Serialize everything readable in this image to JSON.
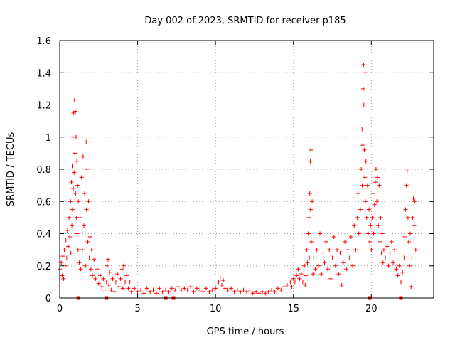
{
  "chart_data": {
    "type": "scatter",
    "title": "Day 002 of 2023, SRMTID for receiver p185",
    "xlabel": "GPS time / hours",
    "ylabel": "SRMTID / TECUs",
    "xlim": [
      0,
      24
    ],
    "ylim": [
      0,
      1.6
    ],
    "xticks": [
      "0",
      "5",
      "10",
      "15",
      "20"
    ],
    "yticks": [
      "0",
      "0.2",
      "0.4",
      "0.6",
      "0.8",
      "1",
      "1.2",
      "1.4",
      "1.6"
    ],
    "xtick_values": [
      0,
      5,
      10,
      15,
      20
    ],
    "ytick_values": [
      0,
      0.2,
      0.4,
      0.6,
      0.8,
      1.0,
      1.2,
      1.4,
      1.6
    ],
    "grid": true,
    "marker": "plus",
    "marker_color": "#ff0000",
    "axis_markers_x": [
      1.2,
      3.0,
      6.8,
      7.3,
      19.9,
      21.9
    ],
    "series": [
      {
        "name": "SRMTID",
        "points": [
          [
            0.0,
            0.18
          ],
          [
            0.1,
            0.22
          ],
          [
            0.15,
            0.14
          ],
          [
            0.2,
            0.26
          ],
          [
            0.25,
            0.12
          ],
          [
            0.3,
            0.3
          ],
          [
            0.35,
            0.2
          ],
          [
            0.4,
            0.36
          ],
          [
            0.45,
            0.25
          ],
          [
            0.5,
            0.42
          ],
          [
            0.55,
            0.32
          ],
          [
            0.6,
            0.5
          ],
          [
            0.65,
            0.38
          ],
          [
            0.7,
            0.6
          ],
          [
            0.72,
            0.28
          ],
          [
            0.75,
            0.72
          ],
          [
            0.78,
            0.45
          ],
          [
            0.8,
            0.82
          ],
          [
            0.82,
            0.55
          ],
          [
            0.85,
            1.0
          ],
          [
            0.87,
            0.68
          ],
          [
            0.9,
            1.15
          ],
          [
            0.92,
            0.78
          ],
          [
            0.95,
            1.23
          ],
          [
            0.97,
            0.9
          ],
          [
            1.0,
            1.16
          ],
          [
            1.02,
            0.65
          ],
          [
            1.05,
            1.0
          ],
          [
            1.08,
            0.5
          ],
          [
            1.1,
            0.85
          ],
          [
            1.12,
            0.4
          ],
          [
            1.15,
            0.7
          ],
          [
            1.18,
            0.3
          ],
          [
            1.2,
            0.6
          ],
          [
            1.25,
            0.22
          ],
          [
            1.3,
            0.5
          ],
          [
            1.35,
            0.18
          ],
          [
            1.4,
            0.75
          ],
          [
            1.45,
            0.3
          ],
          [
            1.5,
            0.88
          ],
          [
            1.55,
            0.45
          ],
          [
            1.6,
            0.65
          ],
          [
            1.65,
            0.2
          ],
          [
            1.7,
            0.97
          ],
          [
            1.72,
            0.55
          ],
          [
            1.75,
            0.8
          ],
          [
            1.8,
            0.35
          ],
          [
            1.85,
            0.6
          ],
          [
            1.9,
            0.25
          ],
          [
            1.95,
            0.38
          ],
          [
            2.0,
            0.18
          ],
          [
            2.05,
            0.3
          ],
          [
            2.1,
            0.14
          ],
          [
            2.2,
            0.24
          ],
          [
            2.3,
            0.12
          ],
          [
            2.4,
            0.18
          ],
          [
            2.5,
            0.09
          ],
          [
            2.6,
            0.14
          ],
          [
            2.7,
            0.07
          ],
          [
            2.8,
            0.12
          ],
          [
            2.9,
            0.05
          ],
          [
            3.0,
            0.1
          ],
          [
            3.05,
            0.2
          ],
          [
            3.1,
            0.24
          ],
          [
            3.15,
            0.08
          ],
          [
            3.2,
            0.16
          ],
          [
            3.3,
            0.05
          ],
          [
            3.4,
            0.12
          ],
          [
            3.5,
            0.04
          ],
          [
            3.6,
            0.1
          ],
          [
            3.7,
            0.15
          ],
          [
            3.8,
            0.07
          ],
          [
            3.9,
            0.12
          ],
          [
            4.0,
            0.18
          ],
          [
            4.05,
            0.06
          ],
          [
            4.1,
            0.2
          ],
          [
            4.2,
            0.1
          ],
          [
            4.3,
            0.14
          ],
          [
            4.4,
            0.06
          ],
          [
            4.5,
            0.1
          ],
          [
            4.6,
            0.04
          ],
          [
            4.8,
            0.06
          ],
          [
            5.0,
            0.04
          ],
          [
            5.2,
            0.05
          ],
          [
            5.4,
            0.03
          ],
          [
            5.6,
            0.06
          ],
          [
            5.8,
            0.04
          ],
          [
            6.0,
            0.05
          ],
          [
            6.2,
            0.03
          ],
          [
            6.4,
            0.06
          ],
          [
            6.6,
            0.04
          ],
          [
            6.8,
            0.05
          ],
          [
            7.0,
            0.04
          ],
          [
            7.2,
            0.06
          ],
          [
            7.4,
            0.05
          ],
          [
            7.6,
            0.07
          ],
          [
            7.8,
            0.05
          ],
          [
            8.0,
            0.06
          ],
          [
            8.2,
            0.05
          ],
          [
            8.4,
            0.07
          ],
          [
            8.6,
            0.04
          ],
          [
            8.8,
            0.06
          ],
          [
            9.0,
            0.05
          ],
          [
            9.2,
            0.04
          ],
          [
            9.4,
            0.06
          ],
          [
            9.6,
            0.04
          ],
          [
            9.8,
            0.05
          ],
          [
            10.0,
            0.06
          ],
          [
            10.2,
            0.1
          ],
          [
            10.3,
            0.13
          ],
          [
            10.4,
            0.08
          ],
          [
            10.5,
            0.11
          ],
          [
            10.6,
            0.06
          ],
          [
            10.8,
            0.05
          ],
          [
            11.0,
            0.06
          ],
          [
            11.2,
            0.04
          ],
          [
            11.4,
            0.05
          ],
          [
            11.6,
            0.04
          ],
          [
            11.8,
            0.05
          ],
          [
            12.0,
            0.04
          ],
          [
            12.2,
            0.05
          ],
          [
            12.4,
            0.03
          ],
          [
            12.6,
            0.04
          ],
          [
            12.8,
            0.03
          ],
          [
            13.0,
            0.04
          ],
          [
            13.2,
            0.03
          ],
          [
            13.4,
            0.04
          ],
          [
            13.6,
            0.05
          ],
          [
            13.8,
            0.04
          ],
          [
            14.0,
            0.06
          ],
          [
            14.2,
            0.05
          ],
          [
            14.4,
            0.07
          ],
          [
            14.6,
            0.08
          ],
          [
            14.8,
            0.1
          ],
          [
            14.9,
            0.07
          ],
          [
            15.0,
            0.12
          ],
          [
            15.1,
            0.1
          ],
          [
            15.2,
            0.14
          ],
          [
            15.3,
            0.18
          ],
          [
            15.4,
            0.12
          ],
          [
            15.5,
            0.15
          ],
          [
            15.6,
            0.1
          ],
          [
            15.7,
            0.2
          ],
          [
            15.75,
            0.08
          ],
          [
            15.8,
            0.14
          ],
          [
            15.85,
            0.3
          ],
          [
            15.9,
            0.22
          ],
          [
            15.95,
            0.4
          ],
          [
            16.0,
            0.5
          ],
          [
            16.02,
            0.25
          ],
          [
            16.05,
            0.65
          ],
          [
            16.08,
            0.85
          ],
          [
            16.1,
            0.55
          ],
          [
            16.12,
            0.92
          ],
          [
            16.15,
            0.35
          ],
          [
            16.2,
            0.6
          ],
          [
            16.25,
            0.15
          ],
          [
            16.3,
            0.25
          ],
          [
            16.4,
            0.18
          ],
          [
            16.5,
            0.3
          ],
          [
            16.6,
            0.2
          ],
          [
            16.7,
            0.4
          ],
          [
            16.8,
            0.15
          ],
          [
            16.9,
            0.28
          ],
          [
            17.0,
            0.22
          ],
          [
            17.1,
            0.35
          ],
          [
            17.2,
            0.18
          ],
          [
            17.3,
            0.3
          ],
          [
            17.4,
            0.12
          ],
          [
            17.5,
            0.25
          ],
          [
            17.6,
            0.38
          ],
          [
            17.7,
            0.2
          ],
          [
            17.8,
            0.3
          ],
          [
            17.9,
            0.15
          ],
          [
            18.0,
            0.28
          ],
          [
            18.1,
            0.08
          ],
          [
            18.2,
            0.22
          ],
          [
            18.3,
            0.35
          ],
          [
            18.4,
            0.18
          ],
          [
            18.5,
            0.3
          ],
          [
            18.6,
            0.25
          ],
          [
            18.7,
            0.38
          ],
          [
            18.8,
            0.2
          ],
          [
            18.9,
            0.45
          ],
          [
            19.0,
            0.3
          ],
          [
            19.1,
            0.5
          ],
          [
            19.15,
            0.65
          ],
          [
            19.2,
            0.4
          ],
          [
            19.3,
            0.55
          ],
          [
            19.35,
            0.8
          ],
          [
            19.4,
            1.05
          ],
          [
            19.42,
            0.7
          ],
          [
            19.45,
            0.95
          ],
          [
            19.48,
            1.3
          ],
          [
            19.5,
            1.45
          ],
          [
            19.52,
            1.2
          ],
          [
            19.55,
            0.92
          ],
          [
            19.58,
            0.75
          ],
          [
            19.6,
            1.4
          ],
          [
            19.62,
            0.6
          ],
          [
            19.65,
            0.85
          ],
          [
            19.7,
            0.5
          ],
          [
            19.75,
            0.7
          ],
          [
            19.8,
            0.4
          ],
          [
            19.85,
            0.55
          ],
          [
            19.9,
            0.35
          ],
          [
            19.95,
            0.45
          ],
          [
            20.0,
            0.3
          ],
          [
            20.05,
            0.5
          ],
          [
            20.1,
            0.65
          ],
          [
            20.15,
            0.4
          ],
          [
            20.2,
            0.58
          ],
          [
            20.25,
            0.72
          ],
          [
            20.3,
            0.8
          ],
          [
            20.35,
            0.6
          ],
          [
            20.4,
            0.75
          ],
          [
            20.45,
            0.45
          ],
          [
            20.5,
            0.7
          ],
          [
            20.55,
            0.35
          ],
          [
            20.6,
            0.5
          ],
          [
            20.65,
            0.28
          ],
          [
            20.7,
            0.4
          ],
          [
            20.75,
            0.22
          ],
          [
            20.8,
            0.3
          ],
          [
            20.9,
            0.25
          ],
          [
            21.0,
            0.32
          ],
          [
            21.1,
            0.2
          ],
          [
            21.2,
            0.28
          ],
          [
            21.3,
            0.35
          ],
          [
            21.4,
            0.22
          ],
          [
            21.5,
            0.3
          ],
          [
            21.6,
            0.18
          ],
          [
            21.7,
            0.14
          ],
          [
            21.8,
            0.2
          ],
          [
            21.9,
            0.1
          ],
          [
            22.0,
            0.16
          ],
          [
            22.1,
            0.25
          ],
          [
            22.15,
            0.38
          ],
          [
            22.2,
            0.55
          ],
          [
            22.25,
            0.7
          ],
          [
            22.3,
            0.79
          ],
          [
            22.35,
            0.5
          ],
          [
            22.4,
            0.35
          ],
          [
            22.45,
            0.2
          ],
          [
            22.5,
            0.4
          ],
          [
            22.55,
            0.07
          ],
          [
            22.6,
            0.25
          ],
          [
            22.65,
            0.5
          ],
          [
            22.7,
            0.62
          ],
          [
            22.75,
            0.45
          ],
          [
            22.8,
            0.6
          ],
          [
            22.85,
            0.3
          ]
        ]
      }
    ]
  }
}
